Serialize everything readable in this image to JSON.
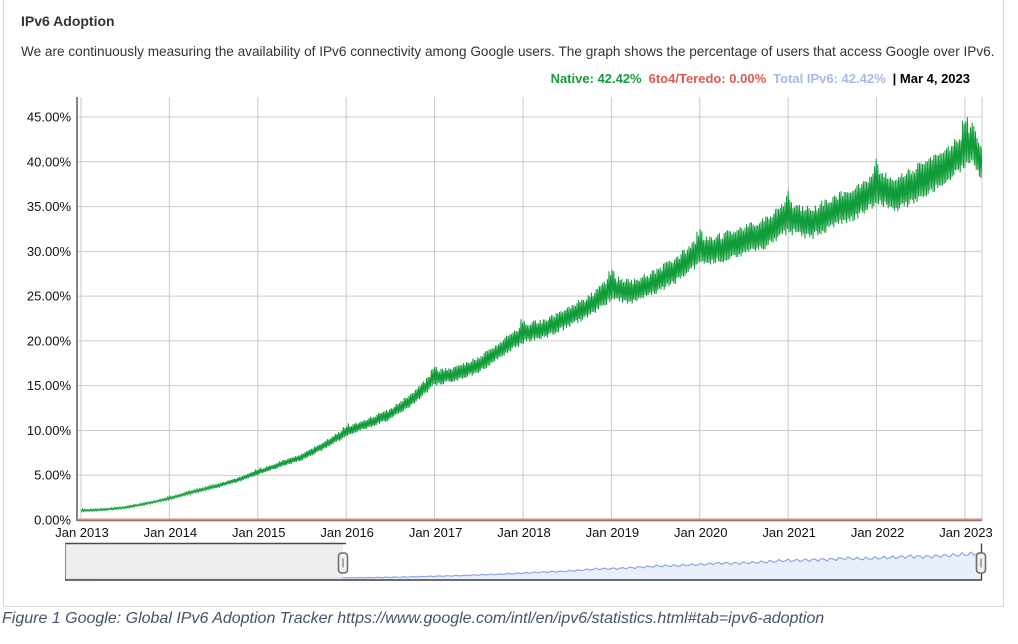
{
  "header": {
    "title": "IPv6 Adoption",
    "description": "We are continuously measuring the availability of IPv6 connectivity among Google users. The graph shows the percentage of users that access Google over IPv6."
  },
  "legend": {
    "items": [
      {
        "name": "native",
        "text": "Native: 42.42%",
        "color": "#179c3d"
      },
      {
        "name": "6to4-teredo",
        "text": "6to4/Teredo: 0.00%",
        "color": "#dd5a52"
      },
      {
        "name": "total-ipv6",
        "text": "Total IPv6: 42.42%",
        "color": "#a6b9ea"
      }
    ],
    "date_label": "| Mar 4, 2023"
  },
  "chart_data": {
    "type": "line",
    "title": "IPv6 Adoption",
    "xlabel": "",
    "ylabel": "",
    "grid": true,
    "legend_position": "top-right",
    "as_of_date": "Mar 4, 2023",
    "ylim": [
      0,
      47.2
    ],
    "y_ticks": [
      0,
      5,
      10,
      15,
      20,
      25,
      30,
      35,
      40,
      45
    ],
    "y_tick_labels": [
      "0.00%",
      "5.00%",
      "10.00%",
      "15.00%",
      "20.00%",
      "25.00%",
      "30.00%",
      "35.00%",
      "40.00%",
      "45.00%"
    ],
    "x_tick_years": [
      2013,
      2014,
      2015,
      2016,
      2017,
      2018,
      2019,
      2020,
      2021,
      2022,
      2023
    ],
    "x_tick_labels": [
      "Jan 2013",
      "Jan 2014",
      "Jan 2015",
      "Jan 2016",
      "Jan 2017",
      "Jan 2018",
      "Jan 2019",
      "Jan 2020",
      "Jan 2021",
      "Jan 2022",
      "Jan 2023"
    ],
    "x_range_years": [
      2012.955,
      2023.19
    ],
    "series": [
      {
        "name": "Native",
        "color": "#119c3a",
        "current_value": "42.42%",
        "x_years": [
          2013.0,
          2013.25,
          2013.5,
          2013.75,
          2014.0,
          2014.25,
          2014.5,
          2014.75,
          2015.0,
          2015.25,
          2015.5,
          2015.75,
          2016.0,
          2016.25,
          2016.5,
          2016.75,
          2017.0,
          2017.25,
          2017.5,
          2017.75,
          2018.0,
          2018.25,
          2018.5,
          2018.75,
          2019.0,
          2019.25,
          2019.5,
          2019.75,
          2020.0,
          2020.25,
          2020.5,
          2020.75,
          2021.0,
          2021.25,
          2021.5,
          2021.75,
          2022.0,
          2022.25,
          2022.5,
          2022.75,
          2023.0,
          2023.08,
          2023.17
        ],
        "values": [
          1.05,
          1.15,
          1.4,
          1.85,
          2.4,
          3.1,
          3.7,
          4.4,
          5.3,
          6.2,
          7.0,
          8.3,
          9.8,
          10.8,
          11.8,
          13.5,
          15.8,
          16.3,
          17.3,
          19.0,
          20.8,
          21.3,
          22.6,
          23.8,
          25.8,
          25.4,
          26.5,
          28.0,
          30.0,
          30.3,
          31.2,
          32.0,
          33.8,
          33.0,
          34.3,
          35.3,
          37.0,
          36.4,
          37.8,
          39.3,
          41.3,
          42.2,
          40.2
        ],
        "oscillation": {
          "period_days": 7,
          "amplitude_fraction_of_value": 0.05,
          "max_amplitude_pct": 1.9,
          "note": "weekly weekend spikes; larger spikes around New Year"
        }
      },
      {
        "name": "6to4/Teredo",
        "color": "#e8837b",
        "current_value": "0.00%",
        "constant_value": 0.0
      },
      {
        "name": "Total IPv6",
        "color": "#a6b9ea",
        "current_value": "42.42%",
        "note": "coincides with Native series, hidden behind it"
      }
    ]
  },
  "slider": {
    "name": "date-range-selector",
    "x_range_years": [
      2008.58,
      2023.15
    ],
    "selected_range_years": [
      2013.0,
      2023.15
    ],
    "mini_series_pre_anchors": {
      "x_years": [
        2008.58,
        2009.0,
        2009.5,
        2010.0,
        2010.5,
        2011.0,
        2011.5,
        2012.0,
        2012.5,
        2012.83
      ],
      "values": [
        0.12,
        0.18,
        0.22,
        0.28,
        0.35,
        0.45,
        0.55,
        0.68,
        0.85,
        0.95
      ]
    },
    "line_color": "#8fa7e0",
    "fill_color": "#e9effb"
  },
  "caption": {
    "text": "Figure 1 Google: Global IPv6 Adoption Tracker https://www.google.com/intl/en/ipv6/statistics.html#tab=ipv6-adoption"
  }
}
